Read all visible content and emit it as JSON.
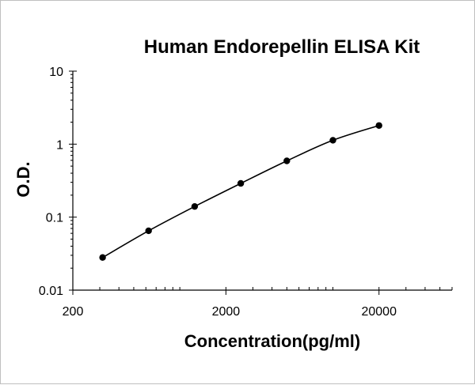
{
  "chart_data": {
    "type": "scatter",
    "title": "Human Endorepellin ELISA Kit",
    "xlabel": "Concentration(pg/ml)",
    "ylabel": "O.D.",
    "x_scale": "log",
    "y_scale": "log",
    "xlim": [
      200,
      60000
    ],
    "ylim": [
      0.01,
      10
    ],
    "x_ticks": [
      "200",
      "2000",
      "20000"
    ],
    "y_ticks": [
      "0.01",
      "0.1",
      "1",
      "10"
    ],
    "grid": false,
    "legend": "none",
    "series": [
      {
        "x": [
          313,
          625,
          1250,
          2500,
          5000,
          10000,
          20000
        ],
        "y": [
          0.028,
          0.065,
          0.14,
          0.29,
          0.59,
          1.13,
          1.8
        ]
      }
    ],
    "colors": {
      "line": "#000000",
      "marker": "#000000"
    }
  }
}
